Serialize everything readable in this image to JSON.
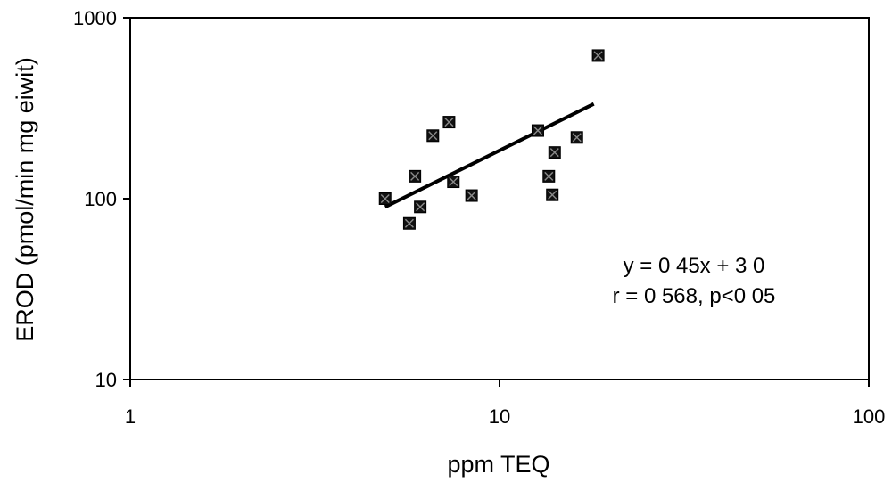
{
  "chart_data": {
    "type": "scatter",
    "title": "",
    "xlabel": "ppm TEQ",
    "ylabel": "EROD (pmol/min mg eiwit)",
    "x_scale": "log",
    "y_scale": "log",
    "xlim": [
      1,
      100
    ],
    "ylim": [
      10,
      1000
    ],
    "x_ticks": [
      1,
      10,
      100
    ],
    "x_tick_labels": [
      "1",
      "10",
      "100"
    ],
    "y_ticks": [
      10,
      100,
      1000
    ],
    "y_tick_labels": [
      "10",
      "100",
      "1000"
    ],
    "grid": false,
    "legend": "none",
    "series": [
      {
        "marker": "filled-square",
        "points": [
          {
            "x": 4.9,
            "y": 100
          },
          {
            "x": 5.7,
            "y": 73
          },
          {
            "x": 5.9,
            "y": 133
          },
          {
            "x": 6.1,
            "y": 90
          },
          {
            "x": 6.6,
            "y": 223
          },
          {
            "x": 7.3,
            "y": 265
          },
          {
            "x": 7.5,
            "y": 124
          },
          {
            "x": 8.4,
            "y": 104
          },
          {
            "x": 12.7,
            "y": 238
          },
          {
            "x": 13.6,
            "y": 133
          },
          {
            "x": 13.9,
            "y": 105
          },
          {
            "x": 14.1,
            "y": 180
          },
          {
            "x": 16.2,
            "y": 218
          },
          {
            "x": 18.5,
            "y": 618
          }
        ]
      }
    ],
    "trendline": {
      "x": [
        4.9,
        18.0
      ],
      "y": [
        90,
        334
      ]
    },
    "annotations": [
      "y = 0 45x + 3 0",
      "r = 0 568, p<0 05"
    ]
  }
}
